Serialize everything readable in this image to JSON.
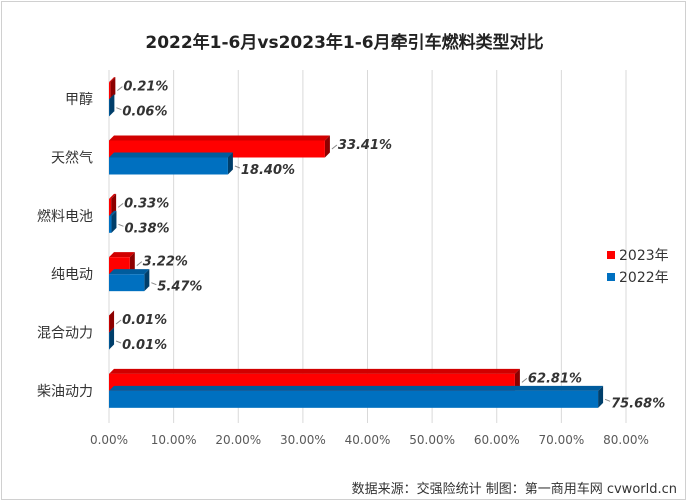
{
  "chart_data": {
    "type": "bar",
    "orientation": "horizontal",
    "title": "2022年1-6月vs2023年1-6月牵引车燃料类型对比",
    "categories": [
      "甲醇",
      "天然气",
      "燃料电池",
      "纯电动",
      "混合动力",
      "柴油动力"
    ],
    "series": [
      {
        "name": "2023年",
        "color": "#ff0000",
        "values": [
          0.21,
          33.41,
          0.33,
          3.22,
          0.01,
          62.81
        ],
        "labels": [
          "0.21%",
          "33.41%",
          "0.33%",
          "3.22%",
          "0.01%",
          "62.81%"
        ]
      },
      {
        "name": "2022年",
        "color": "#0070c0",
        "values": [
          0.06,
          18.4,
          0.38,
          5.47,
          0.01,
          75.68
        ],
        "labels": [
          "0.06%",
          "18.40%",
          "0.38%",
          "5.47%",
          "0.01%",
          "75.68%"
        ]
      }
    ],
    "xlim": [
      0,
      80
    ],
    "xticks": [
      "0.00%",
      "10.00%",
      "20.00%",
      "30.00%",
      "40.00%",
      "50.00%",
      "60.00%",
      "70.00%",
      "80.00%"
    ],
    "grid": true,
    "legend_position": "right"
  },
  "footer": "数据来源：交强险统计   制图：第一商用车网 cvworld.cn"
}
